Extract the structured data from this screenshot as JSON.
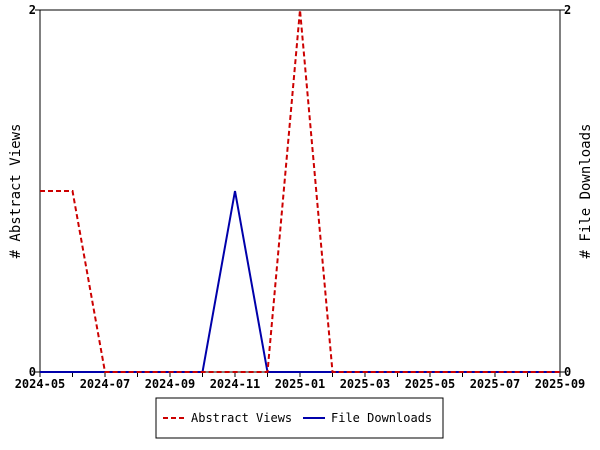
{
  "chart_data": {
    "type": "line",
    "x": [
      "2024-05",
      "2024-06",
      "2024-07",
      "2024-08",
      "2024-09",
      "2024-10",
      "2024-11",
      "2024-12",
      "2025-01",
      "2025-02",
      "2025-03",
      "2025-04",
      "2025-05",
      "2025-06",
      "2025-07",
      "2025-08",
      "2025-09"
    ],
    "x_tick_labels": [
      "2024-05",
      "2024-07",
      "2024-09",
      "2024-11",
      "2025-01",
      "2025-03",
      "2025-05",
      "2025-07",
      "2025-09"
    ],
    "series": [
      {
        "name": "Abstract Views",
        "axis": "left",
        "color": "#cc0000",
        "style": "dashed",
        "values": [
          1,
          1,
          0,
          0,
          0,
          0,
          0,
          0,
          2,
          0,
          0,
          0,
          0,
          0,
          0,
          0,
          0
        ]
      },
      {
        "name": "File Downloads",
        "axis": "right",
        "color": "#0000aa",
        "style": "solid",
        "values": [
          0,
          0,
          0,
          0,
          0,
          0,
          1,
          0,
          0,
          0,
          0,
          0,
          0,
          0,
          0,
          0,
          0
        ]
      }
    ],
    "ylabel_left": "# Abstract Views",
    "ylabel_right": "# File Downloads",
    "ylim_left": [
      0,
      2
    ],
    "ylim_right": [
      0,
      2
    ],
    "y_tick_labels_left": [
      "0",
      "2"
    ],
    "y_tick_labels_right": [
      "0",
      "2"
    ],
    "grid": false,
    "legend": "bottom"
  }
}
